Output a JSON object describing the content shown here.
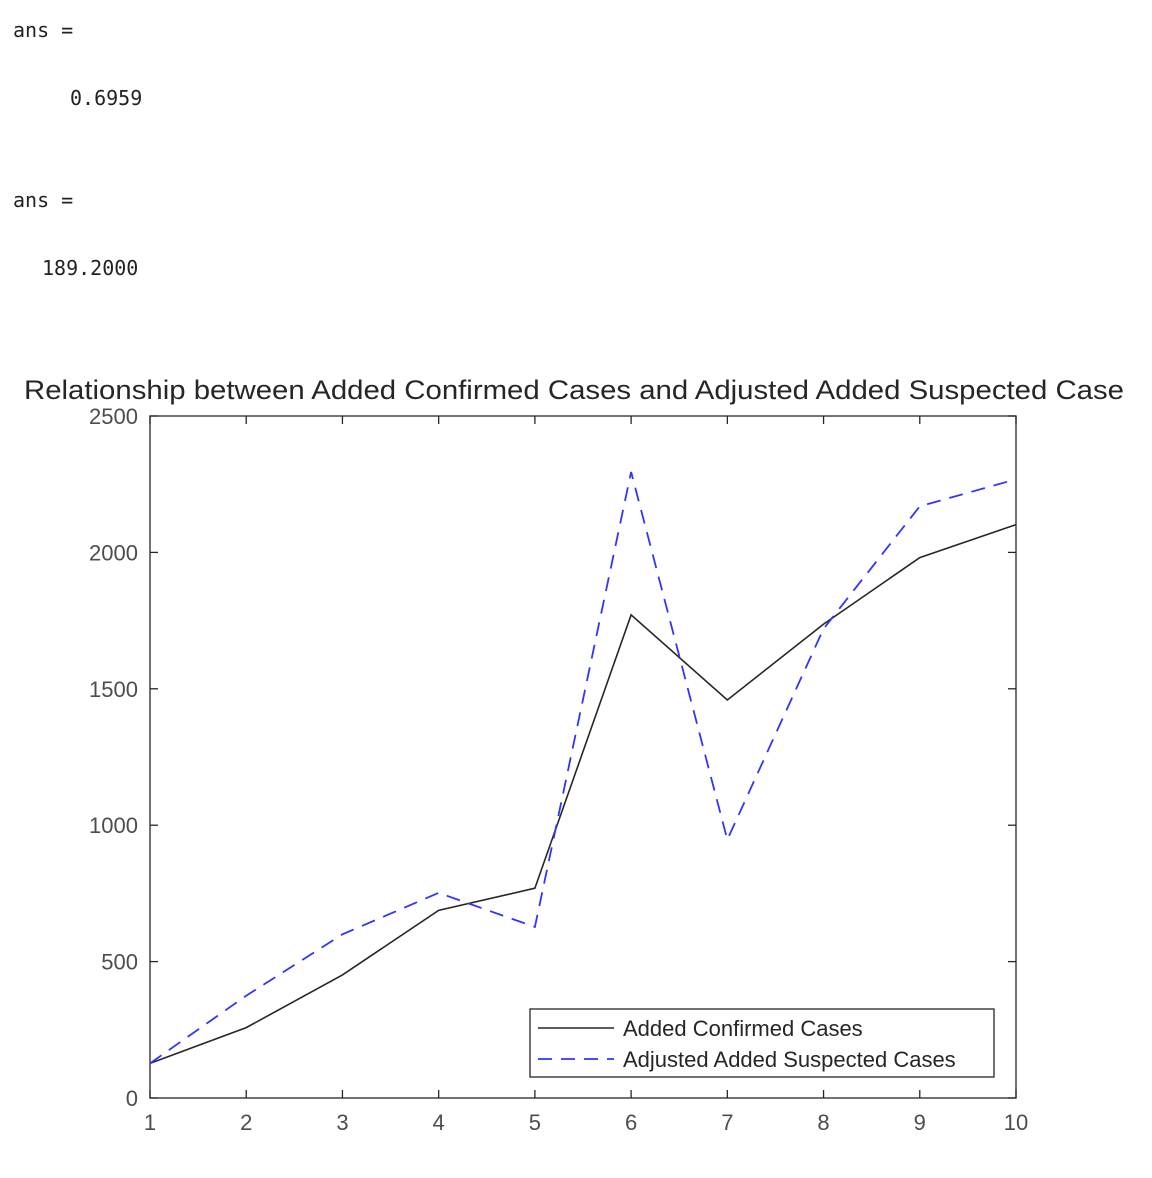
{
  "console": {
    "blocks": [
      {
        "label": "ans =",
        "value": "0.6959"
      },
      {
        "label": "ans =",
        "value": "189.2000"
      }
    ]
  },
  "chart_data": {
    "type": "line",
    "title": "Relationship between Added Confirmed Cases and Adjusted Added Suspected Case",
    "xlabel": "",
    "ylabel": "",
    "xlim": [
      1,
      10
    ],
    "ylim": [
      0,
      2500
    ],
    "x_ticks": [
      1,
      2,
      3,
      4,
      5,
      6,
      7,
      8,
      9,
      10
    ],
    "y_ticks": [
      0,
      500,
      1000,
      1500,
      2000,
      2500
    ],
    "grid": false,
    "legend_position": "bottom-right",
    "x": [
      1,
      2,
      3,
      4,
      5,
      6,
      7,
      8,
      9,
      10
    ],
    "series": [
      {
        "name": "Added Confirmed Cases",
        "color": "#262626",
        "dash": "solid",
        "values": [
          127,
          258,
          451,
          688,
          769,
          1771,
          1459,
          1737,
          1981,
          2102
        ]
      },
      {
        "name": "Adjusted Added Suspected Cases",
        "color": "#3333ff",
        "dash": "dashed",
        "values": [
          127,
          375,
          600,
          752,
          627,
          2295,
          947,
          1720,
          2169,
          2268
        ]
      }
    ]
  }
}
